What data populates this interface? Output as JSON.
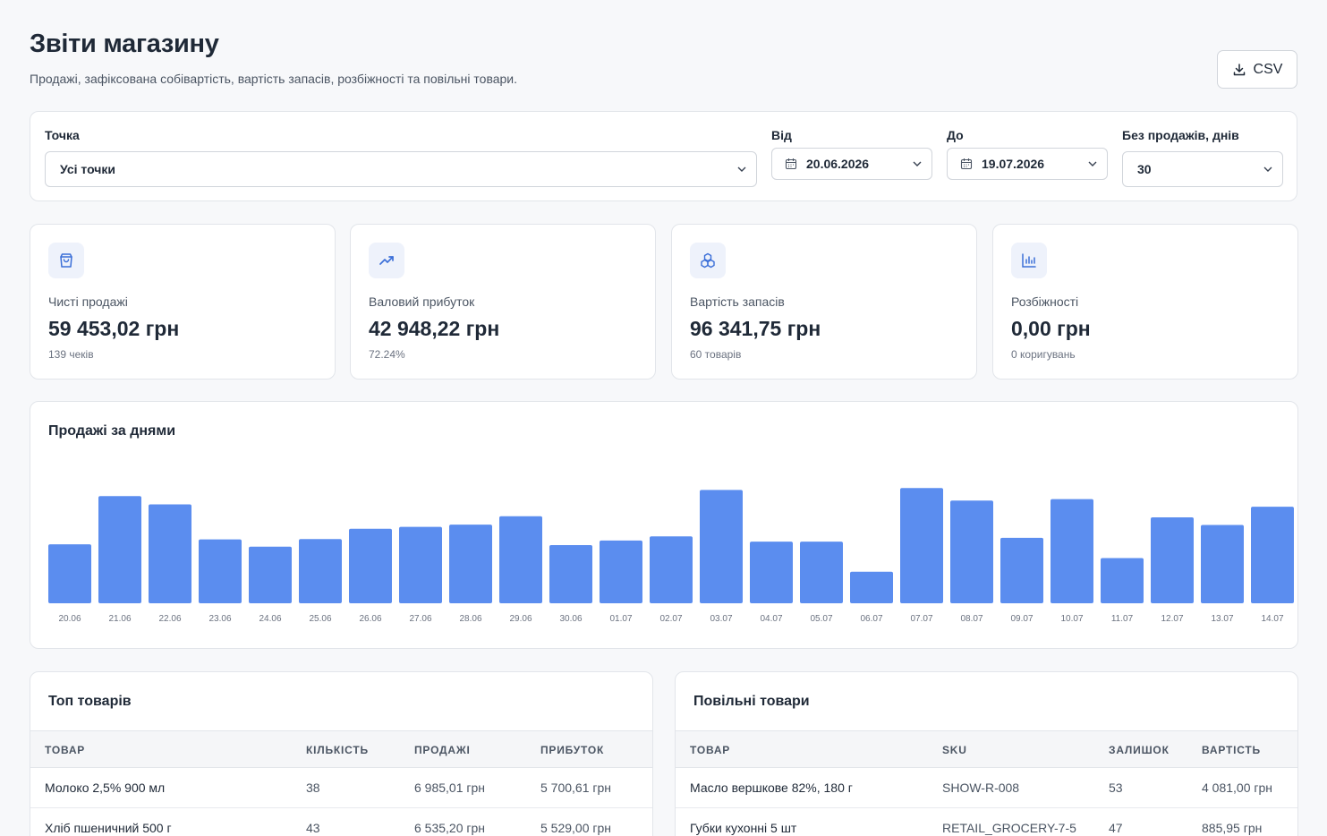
{
  "header": {
    "title": "Звіти магазину",
    "subtitle": "Продажі, зафіксована собівартість, вартість запасів, розбіжності та повільні товари.",
    "csv_label": "CSV"
  },
  "filters": {
    "point": {
      "label": "Точка",
      "value": "Усі точки"
    },
    "from": {
      "label": "Від",
      "value": "20.06.2026"
    },
    "to": {
      "label": "До",
      "value": "19.07.2026"
    },
    "no_sales_days": {
      "label": "Без продажів, днів",
      "value": "30"
    }
  },
  "kpis": [
    {
      "icon": "shopping-bag-icon",
      "label": "Чисті продажі",
      "value": "59 453,02 грн",
      "sub": "139 чеків"
    },
    {
      "icon": "trending-up-icon",
      "label": "Валовий прибуток",
      "value": "42 948,22 грн",
      "sub": "72.24%"
    },
    {
      "icon": "boxes-icon",
      "label": "Вартість запасів",
      "value": "96 341,75 грн",
      "sub": "60 товарів"
    },
    {
      "icon": "bar-chart-icon",
      "label": "Розбіжності",
      "value": "0,00 грн",
      "sub": "0 коригувань"
    }
  ],
  "chart_data": {
    "type": "bar",
    "title": "Продажі за днями",
    "categories": [
      "20.06",
      "21.06",
      "22.06",
      "23.06",
      "24.06",
      "25.06",
      "26.06",
      "27.06",
      "28.06",
      "29.06",
      "30.06",
      "01.07",
      "02.07",
      "03.07",
      "04.07",
      "05.07",
      "06.07",
      "07.07",
      "08.07",
      "09.07",
      "10.07",
      "11.07",
      "12.07",
      "13.07",
      "14.07"
    ],
    "values": [
      1550,
      2820,
      2600,
      1680,
      1490,
      1690,
      1960,
      2010,
      2070,
      2290,
      1530,
      1650,
      1760,
      2980,
      1620,
      1620,
      830,
      3030,
      2700,
      1720,
      2740,
      1190,
      2260,
      2060,
      2540
    ],
    "bar_color": "#5b8def",
    "grid": false
  },
  "top_products": {
    "title": "Топ товарів",
    "columns": [
      "ТОВАР",
      "КІЛЬКІСТЬ",
      "ПРОДАЖІ",
      "ПРИБУТОК"
    ],
    "rows": [
      [
        "Молоко 2,5% 900 мл",
        "38",
        "6 985,01 грн",
        "5 700,61 грн"
      ],
      [
        "Хліб пшеничний 500 г",
        "43",
        "6 535,20 грн",
        "5 529,00 грн"
      ]
    ]
  },
  "slow_products": {
    "title": "Повільні товари",
    "columns": [
      "ТОВАР",
      "SKU",
      "ЗАЛИШОК",
      "ВАРТІСТЬ"
    ],
    "rows": [
      [
        "Масло вершкове 82%, 180 г",
        "SHOW-R-008",
        "53",
        "4 081,00 грн"
      ],
      [
        "Губки кухонні 5 шт",
        "RETAIL_GROCERY-7-5",
        "47",
        "885,95 грн"
      ]
    ]
  }
}
